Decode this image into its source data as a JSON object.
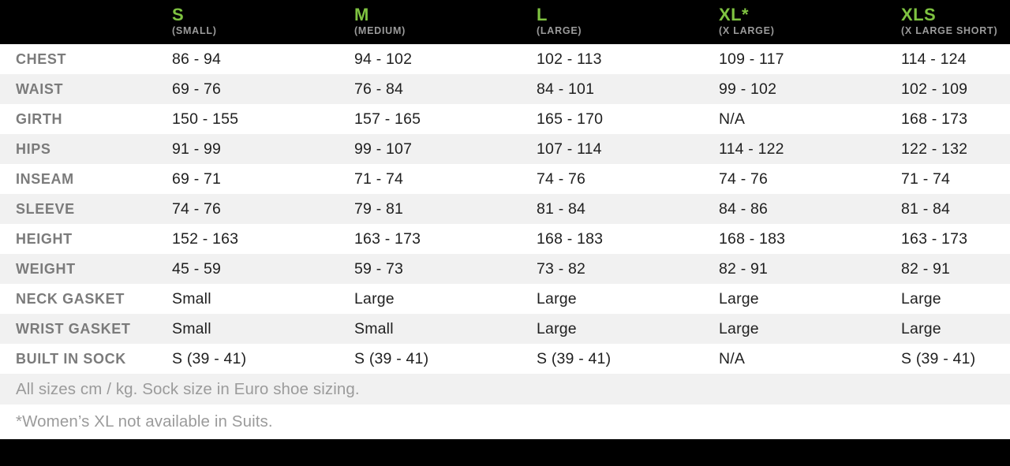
{
  "chart_data": {
    "type": "table",
    "columns": [
      {
        "size": "S",
        "sub": "(SMALL)"
      },
      {
        "size": "M",
        "sub": "(MEDIUM)"
      },
      {
        "size": "L",
        "sub": "(LARGE)"
      },
      {
        "size": "XL*",
        "sub": "(X LARGE)"
      },
      {
        "size": "XLS",
        "sub": "(X LARGE SHORT)"
      }
    ],
    "rows": [
      {
        "label": "CHEST",
        "values": [
          "86 - 94",
          "94 - 102",
          "102 - 113",
          "109 - 117",
          "114 - 124"
        ]
      },
      {
        "label": "WAIST",
        "values": [
          "69 - 76",
          "76 - 84",
          "84 - 101",
          "99 - 102",
          "102 - 109"
        ]
      },
      {
        "label": "GIRTH",
        "values": [
          "150 - 155",
          "157 - 165",
          "165 - 170",
          "N/A",
          "168 - 173"
        ]
      },
      {
        "label": "HIPS",
        "values": [
          "91 - 99",
          "99 - 107",
          "107 - 114",
          "114 - 122",
          "122 - 132"
        ]
      },
      {
        "label": "INSEAM",
        "values": [
          "69 - 71",
          "71 - 74",
          "74 - 76",
          "74 - 76",
          "71 - 74"
        ]
      },
      {
        "label": "SLEEVE",
        "values": [
          "74 - 76",
          "79 - 81",
          "81 - 84",
          "84 - 86",
          "81 - 84"
        ]
      },
      {
        "label": "HEIGHT",
        "values": [
          "152 - 163",
          "163 - 173",
          "168 - 183",
          "168 - 183",
          "163 - 173"
        ]
      },
      {
        "label": "WEIGHT",
        "values": [
          "45 - 59",
          "59 - 73",
          "73 - 82",
          "82 - 91",
          "82 - 91"
        ]
      },
      {
        "label": "NECK GASKET",
        "values": [
          "Small",
          "Large",
          "Large",
          "Large",
          "Large"
        ]
      },
      {
        "label": "WRIST GASKET",
        "values": [
          "Small",
          "Small",
          "Large",
          "Large",
          "Large"
        ]
      },
      {
        "label": "BUILT IN SOCK",
        "values": [
          "S (39 - 41)",
          "S (39 - 41)",
          "S (39 - 41)",
          "N/A",
          "S (39 - 41)"
        ]
      }
    ],
    "notes": [
      "All sizes cm / kg. Sock size in Euro shoe sizing.",
      "*Women’s XL not available in Suits."
    ]
  },
  "colors": {
    "header_bg": "#000000",
    "accent_green": "#7fc341",
    "header_sub_gray": "#9b9b9b",
    "row_label_gray": "#7b7b7b",
    "value_text": "#1f1f1f",
    "stripe_bg": "#f1f1f1",
    "note_text": "#9b9b9b",
    "bottom_bar": "#000000"
  }
}
